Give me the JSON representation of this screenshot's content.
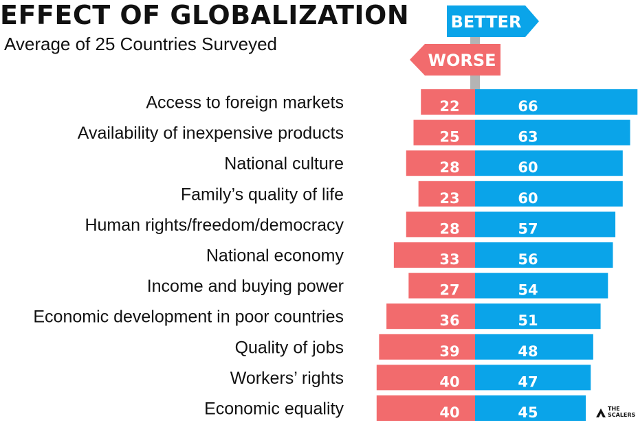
{
  "header": {
    "title": "EFFECT OF GLOBALIZATION",
    "subtitle": "Average of 25 Countries Surveyed"
  },
  "signpost": {
    "better_label": "BETTER",
    "worse_label": "WORSE"
  },
  "logo": {
    "line1": "THE",
    "line2": "SCALERS"
  },
  "colors": {
    "better": "#0aa4e9",
    "worse": "#f26b6d",
    "pole": "#b4b4b4"
  },
  "chart_data": {
    "type": "bar",
    "orientation": "horizontal-diverging",
    "title": "EFFECT OF GLOBALIZATION",
    "subtitle": "Average of 25 Countries Surveyed",
    "categories": [
      "Access to foreign markets",
      "Availability of inexpensive products",
      "National culture",
      "Family’s quality of life",
      "Human rights/freedom/democracy",
      "National economy",
      "Income and buying power",
      "Economic development in poor countries",
      "Quality of jobs",
      "Workers’ rights",
      "Economic equality"
    ],
    "series": [
      {
        "name": "WORSE",
        "values": [
          22,
          25,
          28,
          23,
          28,
          33,
          27,
          36,
          39,
          40,
          40
        ]
      },
      {
        "name": "BETTER",
        "values": [
          66,
          63,
          60,
          60,
          57,
          56,
          54,
          51,
          48,
          47,
          45
        ]
      }
    ],
    "legend": "signpost top"
  }
}
